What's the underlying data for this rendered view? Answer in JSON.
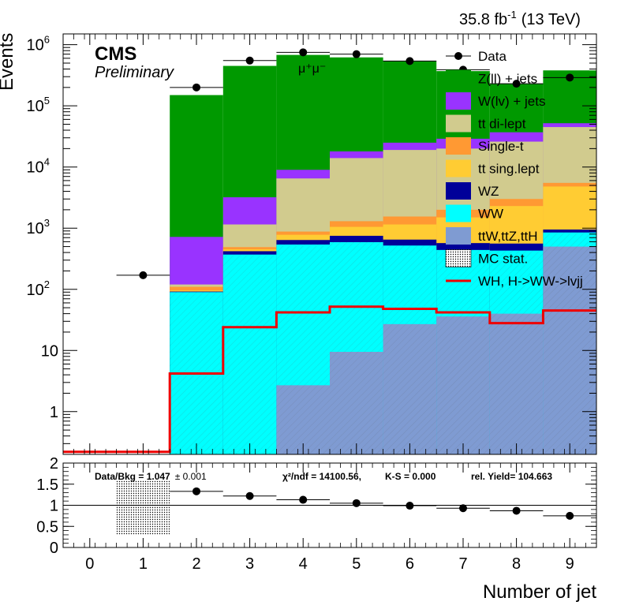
{
  "chart_data": [
    {
      "type": "stacked-histogram-log",
      "header_lumi": "35.8 fb",
      "header_lumi_exp": "-1",
      "header_energy": "(13 TeV)",
      "ylabel": "Events",
      "xlabel": "Number of jet",
      "experiment": "CMS",
      "status": "Preliminary",
      "channel": "μ⁺μ⁻",
      "ylim": [
        0.2,
        1500000
      ],
      "yscale": "log",
      "xlim": [
        -0.5,
        9.5
      ],
      "yticks": [
        {
          "v": 1,
          "label": "1"
        },
        {
          "v": 10,
          "label": "10"
        },
        {
          "v": 100,
          "label": "10",
          "exp": "2"
        },
        {
          "v": 1000,
          "label": "10",
          "exp": "3"
        },
        {
          "v": 10000,
          "label": "10",
          "exp": "4"
        },
        {
          "v": 100000,
          "label": "10",
          "exp": "5"
        },
        {
          "v": 1000000,
          "label": "10",
          "exp": "6"
        }
      ],
      "stack_cumulative": [
        {
          "name": "ttW,ttZ,ttH",
          "color": "#7f9bd2",
          "hatch": true,
          "values": [
            0,
            0,
            0,
            0,
            2.7,
            9.5,
            27,
            36,
            40,
            500
          ]
        },
        {
          "name": "WW",
          "color": "#00ffff",
          "hatch": true,
          "values": [
            0,
            0,
            90,
            370,
            540,
            590,
            520,
            440,
            430,
            850
          ]
        },
        {
          "name": "WZ",
          "color": "#000099",
          "values": [
            0,
            0,
            92,
            420,
            640,
            750,
            650,
            570,
            560,
            950
          ]
        },
        {
          "name": "tt sing.lept",
          "color": "#ffcc33",
          "values": [
            0,
            0,
            96,
            450,
            780,
            1050,
            1150,
            1500,
            2300,
            4800
          ]
        },
        {
          "name": "Single-t",
          "color": "#ff9933",
          "values": [
            0,
            0,
            110,
            490,
            880,
            1300,
            1550,
            2000,
            3000,
            5500
          ]
        },
        {
          "name": "tt di-lept",
          "color": "#d1cb8e",
          "values": [
            0,
            0,
            120,
            1150,
            6500,
            14000,
            19000,
            20000,
            26000,
            45000
          ]
        },
        {
          "name": "W(lv) + jets",
          "color": "#9933ff",
          "values": [
            0,
            0,
            720,
            3200,
            9000,
            18000,
            25000,
            29000,
            37000,
            52000
          ]
        },
        {
          "name": "Z(ll) + jets",
          "color": "#009900",
          "values": [
            0,
            0,
            150000,
            450000,
            680000,
            620000,
            540000,
            370000,
            230000,
            380000
          ]
        }
      ],
      "signal": {
        "name": "WH, H->WW->lvjj",
        "color": "#ee0000",
        "values": [
          0.22,
          0.22,
          4.2,
          24,
          42,
          52,
          48,
          42,
          28,
          45
        ]
      },
      "data": {
        "name": "Data",
        "x": [
          1,
          2,
          3,
          4,
          5,
          6,
          7,
          8,
          9
        ],
        "values": [
          170,
          200000,
          550000,
          750000,
          700000,
          540000,
          390000,
          230000,
          290000
        ]
      },
      "legend": [
        {
          "name": "Data",
          "kind": "marker"
        },
        {
          "name": "Z(ll) + jets",
          "kind": "fill",
          "color": "#009900"
        },
        {
          "name": "W(lv) + jets",
          "kind": "fill",
          "color": "#9933ff"
        },
        {
          "name": "tt di-lept",
          "kind": "fill",
          "color": "#d1cb8e"
        },
        {
          "name": "Single-t",
          "kind": "fill",
          "color": "#ff9933"
        },
        {
          "name": "tt sing.lept",
          "kind": "fill",
          "color": "#ffcc33"
        },
        {
          "name": "WZ",
          "kind": "fill",
          "color": "#000099"
        },
        {
          "name": "WW",
          "kind": "fill",
          "color": "#00ffff"
        },
        {
          "name": "ttW,ttZ,ttH",
          "kind": "fill",
          "color": "#7f9bd2"
        },
        {
          "name": "MC stat.",
          "kind": "stat"
        },
        {
          "name": "WH, H->WW->lvjj",
          "kind": "line",
          "color": "#ee0000"
        }
      ]
    },
    {
      "type": "ratio",
      "ylim": [
        0,
        2
      ],
      "yticks": [
        0,
        0.5,
        1,
        1.5,
        2
      ],
      "ytick_labels": [
        "0",
        "0.5",
        "1",
        "1.5",
        "2"
      ],
      "xticks": [
        0,
        1,
        2,
        3,
        4,
        5,
        6,
        7,
        8,
        9
      ],
      "xtick_labels": [
        "0",
        "1",
        "2",
        "3",
        "4",
        "5",
        "6",
        "7",
        "8",
        "9"
      ],
      "ratio_x": [
        2,
        3,
        4,
        5,
        6,
        7,
        8,
        9
      ],
      "ratio_values": [
        1.33,
        1.22,
        1.13,
        1.05,
        0.99,
        0.93,
        0.87,
        0.75
      ],
      "stat_band": {
        "x_range": [
          0.5,
          1.5
        ],
        "y_range": [
          0.3,
          1.6
        ]
      },
      "text_data_bkg": "Data/Bkg = 1.047",
      "text_data_bkg_err": "± 0.001",
      "text_chi2": "χ²/ndf = 14100.56,",
      "text_ks": "K-S = 0.000",
      "text_yield": "rel. Yield= 104.663"
    }
  ]
}
